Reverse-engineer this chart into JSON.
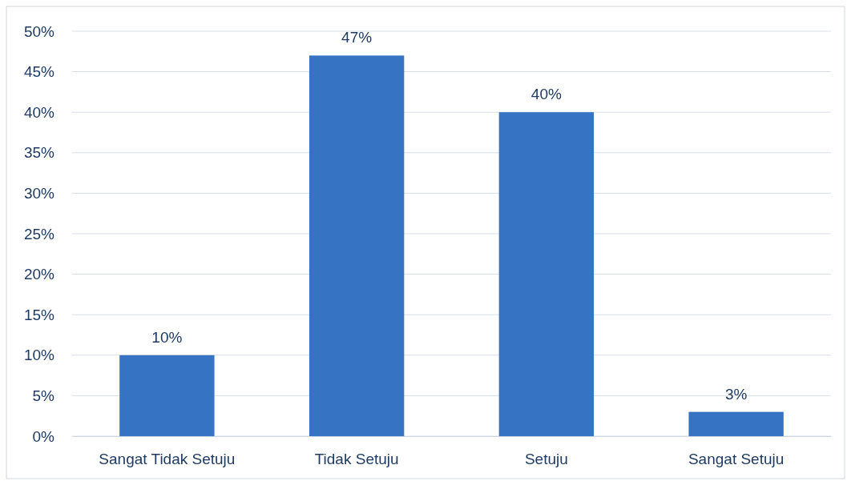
{
  "chart_data": {
    "type": "bar",
    "categories": [
      "Sangat Tidak Setuju",
      "Tidak Setuju",
      "Setuju",
      "Sangat Setuju"
    ],
    "values": [
      10,
      47,
      40,
      3
    ],
    "value_labels": [
      "10%",
      "47%",
      "40%",
      "3%"
    ],
    "color": "#3673c2",
    "ylim": [
      0,
      50
    ],
    "yticks": [
      {
        "value": 0,
        "label": "0%"
      },
      {
        "value": 5,
        "label": "5%"
      },
      {
        "value": 10,
        "label": "10%"
      },
      {
        "value": 15,
        "label": "15%"
      },
      {
        "value": 20,
        "label": "20%"
      },
      {
        "value": 25,
        "label": "25%"
      },
      {
        "value": 30,
        "label": "30%"
      },
      {
        "value": 35,
        "label": "35%"
      },
      {
        "value": 40,
        "label": "40%"
      },
      {
        "value": 45,
        "label": "45%"
      },
      {
        "value": 50,
        "label": "50%"
      }
    ],
    "grid": "y"
  }
}
